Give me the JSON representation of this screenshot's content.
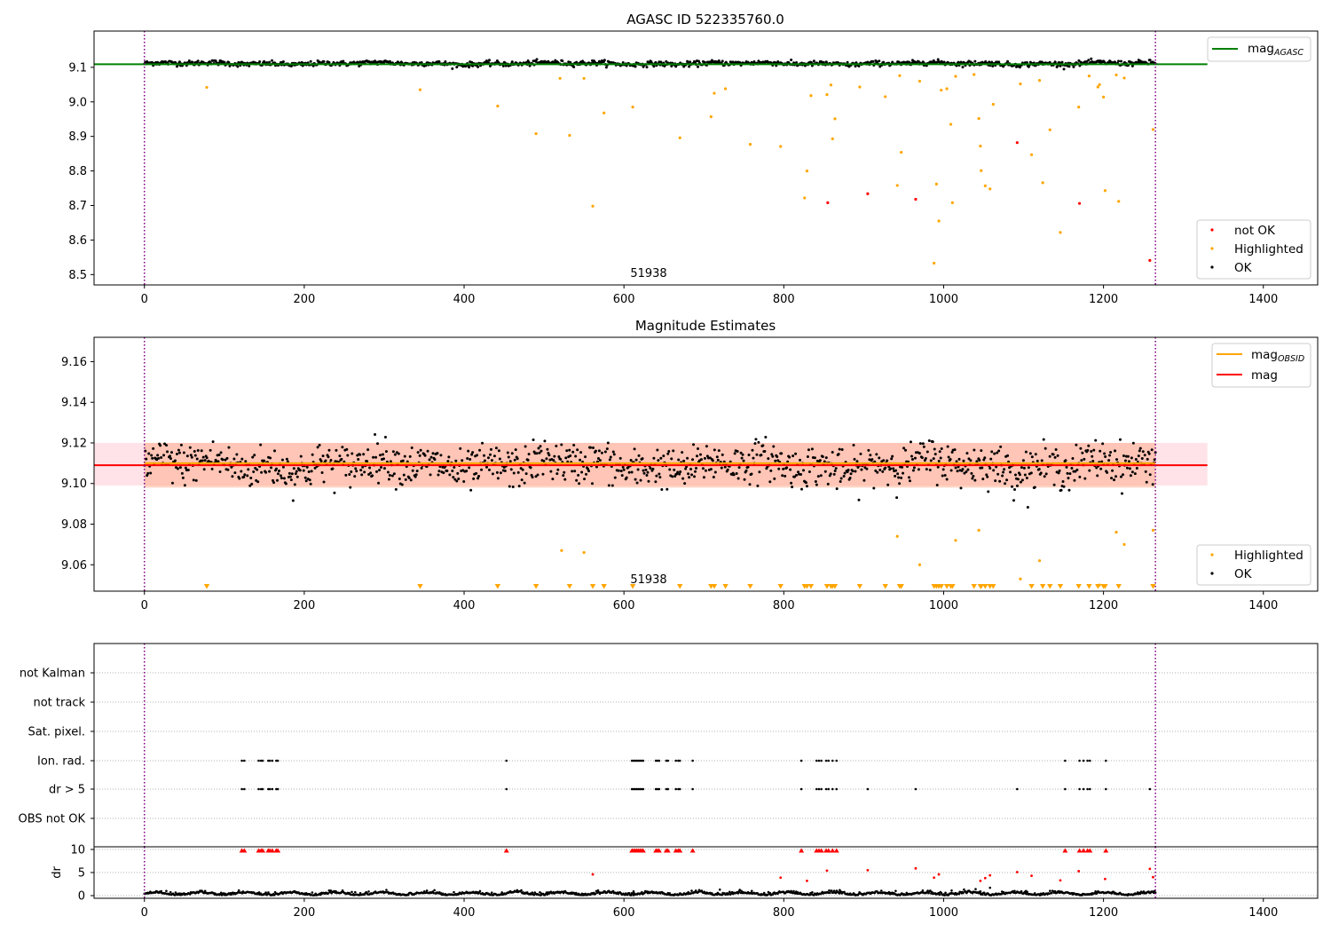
{
  "chart_data": [
    {
      "type": "scatter",
      "title": "AGASC ID 522335760.0",
      "annotation": "51938",
      "xlim": [
        -63,
        1468
      ],
      "ylim": [
        8.47,
        9.205
      ],
      "xticks": [
        0,
        200,
        400,
        600,
        800,
        1000,
        1200,
        1400
      ],
      "yticks": [
        8.5,
        8.6,
        8.7,
        8.8,
        8.9,
        9.0,
        9.1
      ],
      "ytick_labels": [
        "8.5",
        "8.6",
        "8.7",
        "8.8",
        "8.9",
        "9.0",
        "9.1"
      ],
      "vlines": [
        0,
        1265
      ],
      "hline": {
        "y": 9.109,
        "color": "#008000",
        "x_end": 1330
      },
      "legend_lines": [
        {
          "name": "mag",
          "sub": "AGASC",
          "color": "#008000"
        }
      ],
      "legend_points": [
        {
          "name": "not OK",
          "color": "#ff0000"
        },
        {
          "name": "Highlighted",
          "color": "#ffa500"
        },
        {
          "name": "OK",
          "color": "#000000"
        }
      ],
      "ok_band": {
        "x_start": 0,
        "x_end": 1265,
        "center": 9.111,
        "amplitude": 0.008
      },
      "highlighted": [
        [
          78,
          9.042
        ],
        [
          345,
          9.035
        ],
        [
          442,
          8.988
        ],
        [
          490,
          8.908
        ],
        [
          520,
          9.068
        ],
        [
          532,
          8.903
        ],
        [
          550,
          9.068
        ],
        [
          561,
          8.698
        ],
        [
          575,
          8.968
        ],
        [
          611,
          8.985
        ],
        [
          670,
          8.896
        ],
        [
          709,
          8.957
        ],
        [
          713,
          9.025
        ],
        [
          727,
          9.038
        ],
        [
          758,
          8.877
        ],
        [
          796,
          8.871
        ],
        [
          826,
          8.722
        ],
        [
          829,
          8.8
        ],
        [
          834,
          9.018
        ],
        [
          854,
          9.021
        ],
        [
          859,
          9.049
        ],
        [
          861,
          8.893
        ],
        [
          864,
          8.951
        ],
        [
          895,
          9.043
        ],
        [
          927,
          9.015
        ],
        [
          942,
          8.758
        ],
        [
          945,
          9.076
        ],
        [
          947,
          8.854
        ],
        [
          970,
          9.06
        ],
        [
          988,
          8.533
        ],
        [
          991,
          8.762
        ],
        [
          994,
          8.655
        ],
        [
          997,
          9.034
        ],
        [
          1004,
          9.038
        ],
        [
          1009,
          8.935
        ],
        [
          1011,
          8.708
        ],
        [
          1015,
          9.074
        ],
        [
          1038,
          9.079
        ],
        [
          1044,
          8.952
        ],
        [
          1046,
          8.872
        ],
        [
          1047,
          8.801
        ],
        [
          1052,
          8.757
        ],
        [
          1058,
          8.748
        ],
        [
          1062,
          8.993
        ],
        [
          1096,
          9.052
        ],
        [
          1110,
          8.847
        ],
        [
          1120,
          9.062
        ],
        [
          1124,
          8.766
        ],
        [
          1133,
          8.919
        ],
        [
          1146,
          8.622
        ],
        [
          1169,
          8.985
        ],
        [
          1182,
          9.075
        ],
        [
          1193,
          9.043
        ],
        [
          1195,
          9.05
        ],
        [
          1200,
          9.014
        ],
        [
          1202,
          8.743
        ],
        [
          1216,
          9.078
        ],
        [
          1219,
          8.712
        ],
        [
          1226,
          9.069
        ],
        [
          1262,
          8.92
        ]
      ],
      "not_ok": [
        [
          855,
          8.708
        ],
        [
          905,
          8.734
        ],
        [
          965,
          8.718
        ],
        [
          1092,
          8.882
        ],
        [
          1170,
          8.706
        ],
        [
          1258,
          8.541
        ]
      ]
    },
    {
      "type": "scatter",
      "title": "Magnitude Estimates",
      "annotation": "51938",
      "xlim": [
        -63,
        1468
      ],
      "ylim": [
        9.047,
        9.172
      ],
      "xticks": [
        0,
        200,
        400,
        600,
        800,
        1000,
        1200,
        1400
      ],
      "yticks": [
        9.06,
        9.08,
        9.1,
        9.12,
        9.14,
        9.16
      ],
      "ytick_labels": [
        "9.06",
        "9.08",
        "9.10",
        "9.12",
        "9.14",
        "9.16"
      ],
      "vlines": [
        0,
        1265
      ],
      "hline": {
        "y": 9.109,
        "color": "#ff0000",
        "x_end": 1330
      },
      "obsid_line": {
        "y": 9.11,
        "color": "#ffa500",
        "x_end": 1265
      },
      "pink_band": {
        "y0": 9.099,
        "y1": 9.12,
        "x_end": 1330
      },
      "salmon_band": {
        "y0": 9.098,
        "y1": 9.12,
        "x_end": 1265
      },
      "legend_lines": [
        {
          "name": "mag",
          "sub": "OBSID",
          "color": "#ffa500"
        },
        {
          "name": "mag",
          "sub": "",
          "color": "#ff0000"
        }
      ],
      "legend_points": [
        {
          "name": "Highlighted",
          "color": "#ffa500"
        },
        {
          "name": "OK",
          "color": "#000000"
        }
      ],
      "ok_band": {
        "x_start": 0,
        "x_end": 1265,
        "center": 9.109,
        "amplitude": 0.011
      },
      "highlighted": [
        [
          522,
          9.067
        ],
        [
          550,
          9.066
        ],
        [
          942,
          9.074
        ],
        [
          970,
          9.06
        ],
        [
          1015,
          9.072
        ],
        [
          1044,
          9.077
        ],
        [
          1096,
          9.053
        ],
        [
          1120,
          9.062
        ],
        [
          1195,
          9.05
        ],
        [
          1216,
          9.076
        ],
        [
          1226,
          9.07
        ],
        [
          1262,
          9.077
        ]
      ],
      "offscale_markers_x": [
        78,
        345,
        442,
        490,
        532,
        561,
        575,
        611,
        670,
        709,
        713,
        727,
        758,
        796,
        826,
        829,
        834,
        854,
        859,
        861,
        864,
        895,
        927,
        945,
        947,
        988,
        991,
        994,
        997,
        1004,
        1009,
        1011,
        1038,
        1046,
        1047,
        1052,
        1058,
        1062,
        1110,
        1124,
        1133,
        1146,
        1169,
        1182,
        1193,
        1200,
        1202,
        1219,
        1262
      ]
    },
    {
      "type": "scatter",
      "title": "",
      "xlim": [
        -63,
        1468
      ],
      "vlines": [
        0,
        1265
      ],
      "categories": [
        "not Kalman",
        "not track",
        "Sat. pixel.",
        "Ion. rad.",
        "dr > 5",
        "OBS not OK"
      ],
      "flags": {
        "Ion. rad.": [
          122,
          125,
          143,
          146,
          148,
          155,
          157,
          160,
          165,
          167,
          453,
          610,
          612,
          614,
          616,
          618,
          620,
          622,
          624,
          640,
          642,
          644,
          653,
          655,
          665,
          668,
          670,
          686,
          822,
          841,
          844,
          847,
          853,
          856,
          861,
          866,
          1152,
          1170,
          1175,
          1180,
          1183,
          1203
        ],
        "dr > 5": [
          122,
          125,
          143,
          146,
          148,
          155,
          157,
          160,
          165,
          167,
          453,
          610,
          612,
          614,
          616,
          618,
          620,
          622,
          624,
          640,
          642,
          644,
          653,
          655,
          665,
          668,
          670,
          686,
          822,
          841,
          844,
          847,
          853,
          856,
          861,
          866,
          905,
          965,
          1092,
          1152,
          1170,
          1175,
          1180,
          1183,
          1203,
          1258
        ]
      }
    },
    {
      "type": "scatter",
      "ylabel": "dr",
      "xlim": [
        -63,
        1468
      ],
      "ylim": [
        -0.5,
        10.5
      ],
      "xticks": [
        0,
        200,
        400,
        600,
        800,
        1000,
        1200,
        1400
      ],
      "yticks": [
        0,
        5,
        10
      ],
      "ytick_labels": [
        "0",
        "5",
        "10"
      ],
      "vlines": [
        0,
        1265
      ],
      "clipped_value": 9.8,
      "clipped_x": [
        122,
        125,
        143,
        146,
        148,
        155,
        157,
        160,
        165,
        167,
        453,
        610,
        612,
        614,
        616,
        618,
        620,
        622,
        624,
        640,
        642,
        644,
        653,
        655,
        665,
        668,
        670,
        686,
        822,
        841,
        844,
        847,
        853,
        856,
        861,
        866,
        1152,
        1170,
        1175,
        1180,
        1183,
        1203
      ],
      "red_points": [
        [
          561,
          4.6
        ],
        [
          796,
          3.9
        ],
        [
          829,
          3.2
        ],
        [
          854,
          5.4
        ],
        [
          905,
          5.5
        ],
        [
          965,
          5.9
        ],
        [
          988,
          3.9
        ],
        [
          994,
          4.6
        ],
        [
          1046,
          3.2
        ],
        [
          1052,
          3.8
        ],
        [
          1058,
          4.4
        ],
        [
          1092,
          5.1
        ],
        [
          1110,
          4.3
        ],
        [
          1146,
          3.3
        ],
        [
          1169,
          5.3
        ],
        [
          1202,
          3.6
        ],
        [
          1258,
          5.8
        ],
        [
          1262,
          4.0
        ]
      ],
      "baseline": {
        "x_start": 0,
        "x_end": 1265,
        "level": 0.3
      }
    }
  ]
}
